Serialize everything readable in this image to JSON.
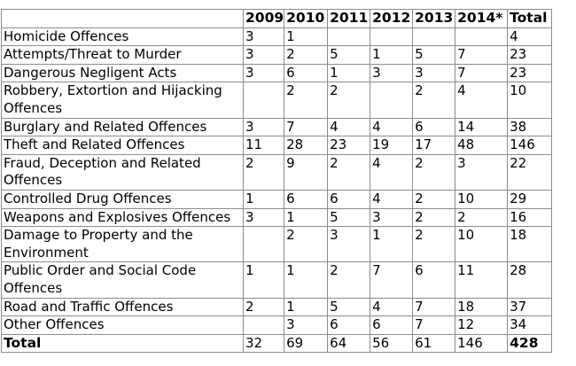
{
  "table": {
    "headers": [
      "",
      "2009",
      "2010",
      "2011",
      "2012",
      "2013",
      "2014*",
      "Total"
    ],
    "rows": [
      {
        "label": "Homicide Offences",
        "values": [
          "3",
          "1",
          "",
          "",
          "",
          "",
          "4"
        ]
      },
      {
        "label": "Attempts/Threat to Murder",
        "values": [
          "3",
          "2",
          "5",
          "1",
          "5",
          "7",
          "23"
        ]
      },
      {
        "label": "Dangerous Negligent Acts",
        "values": [
          "3",
          "6",
          "1",
          "3",
          "3",
          "7",
          "23"
        ]
      },
      {
        "label": "Robbery, Extortion and Hijacking Offences",
        "values": [
          "",
          "2",
          "2",
          "",
          "2",
          "4",
          "10"
        ]
      },
      {
        "label": "Burglary and Related Offences",
        "values": [
          "3",
          "7",
          "4",
          "4",
          "6",
          "14",
          "38"
        ]
      },
      {
        "label": "Theft and Related Offences",
        "values": [
          "11",
          "28",
          "23",
          "19",
          "17",
          "48",
          "146"
        ]
      },
      {
        "label": "Fraud, Deception and Related Offences",
        "values": [
          "2",
          "9",
          "2",
          "4",
          "2",
          "3",
          "22"
        ]
      },
      {
        "label": "Controlled Drug Offences",
        "values": [
          "1",
          "6",
          "6",
          "4",
          "2",
          "10",
          "29"
        ]
      },
      {
        "label": "Weapons and Explosives Offences",
        "values": [
          "3",
          "1",
          "5",
          "3",
          "2",
          "2",
          "16"
        ]
      },
      {
        "label": "Damage to Property and the Environment",
        "values": [
          "",
          "2",
          "3",
          "1",
          "2",
          "10",
          "18"
        ]
      },
      {
        "label": "Public Order and Social Code Offences",
        "values": [
          "1",
          "1",
          "2",
          "7",
          "6",
          "11",
          "28"
        ]
      },
      {
        "label": "Road and Traffic Offences",
        "values": [
          "2",
          "1",
          "5",
          "4",
          "7",
          "18",
          "37"
        ]
      },
      {
        "label": "Other Offences",
        "values": [
          "",
          "3",
          "6",
          "6",
          "7",
          "12",
          "34"
        ]
      }
    ],
    "total_row": {
      "label": "Total",
      "values": [
        "32",
        "69",
        "64",
        "56",
        "61",
        "146",
        "428"
      ]
    }
  }
}
